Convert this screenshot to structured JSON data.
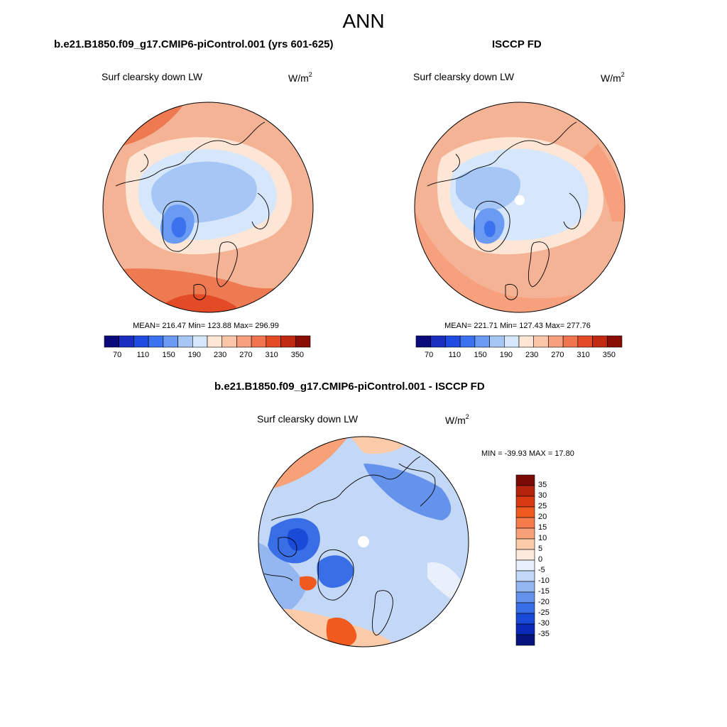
{
  "figure": {
    "title": "ANN"
  },
  "panels": [
    {
      "id": "model",
      "case_title": "b.e21.B1850.f09_g17.CMIP6-piControl.001 (yrs 601-625)",
      "variable": "Surf clearsky down LW",
      "units_base": "W/m",
      "units_exp": "2",
      "stats_text": "MEAN= 216.47  Min= 123.88  Max= 296.99"
    },
    {
      "id": "obs",
      "case_title": "ISCCP FD",
      "variable": "Surf clearsky down LW",
      "units_base": "W/m",
      "units_exp": "2",
      "stats_text": "MEAN= 221.71  Min= 127.43  Max= 277.76"
    },
    {
      "id": "diff",
      "case_title": "b.e21.B1850.f09_g17.CMIP6-piControl.001 - ISCCP FD",
      "variable": "Surf clearsky down LW",
      "units_base": "W/m",
      "units_exp": "2",
      "stats_text": "MIN = -39.93 MAX =  17.80"
    }
  ],
  "chart_data": [
    {
      "type": "heatmap",
      "panel": "model",
      "projection": "north-polar-stereographic",
      "colorbar": {
        "orientation": "horizontal",
        "colors": [
          "#0a0a7a",
          "#1a2ebf",
          "#1f4be0",
          "#3a72ef",
          "#6b9af2",
          "#a6c6f6",
          "#d7e7fb",
          "#fde6d5",
          "#fbc6a8",
          "#f7a07e",
          "#f0754f",
          "#e34a26",
          "#c12a10",
          "#8a0d05"
        ],
        "tick_labels": [
          "70",
          "110",
          "150",
          "190",
          "230",
          "270",
          "310",
          "350"
        ],
        "tick_values": [
          70,
          110,
          150,
          190,
          230,
          270,
          310,
          350
        ],
        "range": [
          50,
          370
        ]
      },
      "stats": {
        "mean": 216.47,
        "min": 123.88,
        "max": 296.99
      }
    },
    {
      "type": "heatmap",
      "panel": "obs",
      "projection": "north-polar-stereographic",
      "colorbar": {
        "orientation": "horizontal",
        "colors": [
          "#0a0a7a",
          "#1a2ebf",
          "#1f4be0",
          "#3a72ef",
          "#6b9af2",
          "#a6c6f6",
          "#d7e7fb",
          "#fde6d5",
          "#fbc6a8",
          "#f7a07e",
          "#f0754f",
          "#e34a26",
          "#c12a10",
          "#8a0d05"
        ],
        "tick_labels": [
          "70",
          "110",
          "150",
          "190",
          "230",
          "270",
          "310",
          "350"
        ],
        "tick_values": [
          70,
          110,
          150,
          190,
          230,
          270,
          310,
          350
        ],
        "range": [
          50,
          370
        ]
      },
      "stats": {
        "mean": 221.71,
        "min": 127.43,
        "max": 277.76
      }
    },
    {
      "type": "heatmap",
      "panel": "diff",
      "projection": "north-polar-stereographic",
      "colorbar": {
        "orientation": "vertical",
        "colors_top_to_bottom": [
          "#7a0a05",
          "#b5220c",
          "#d93a12",
          "#f05a1e",
          "#f57c4a",
          "#f8a077",
          "#fbcaa8",
          "#fde9dc",
          "#e8f0fb",
          "#c3d7f6",
          "#94b6f1",
          "#6593ec",
          "#3a6ee6",
          "#1a4ad8",
          "#0b2ab8",
          "#06137c"
        ],
        "tick_labels": [
          "35",
          "30",
          "25",
          "20",
          "15",
          "10",
          "5",
          "0",
          "-5",
          "-10",
          "-15",
          "-20",
          "-25",
          "-30",
          "-35"
        ],
        "tick_values": [
          35,
          30,
          25,
          20,
          15,
          10,
          5,
          0,
          -5,
          -10,
          -15,
          -20,
          -25,
          -30,
          -35
        ]
      },
      "stats": {
        "min": -39.93,
        "max": 17.8
      }
    }
  ]
}
